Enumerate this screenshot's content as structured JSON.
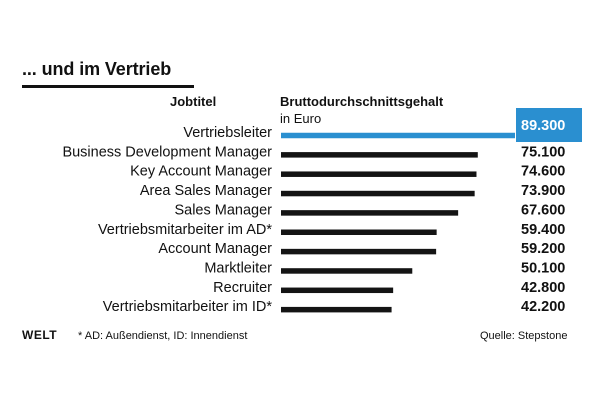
{
  "header": {
    "title": "... und im Vertrieb"
  },
  "columns": {
    "job_label": "Jobtitel",
    "salary_label": "Bruttodurchschnittsgehalt",
    "salary_unit": "in Euro"
  },
  "chart_data": {
    "type": "bar",
    "orientation": "horizontal",
    "categories": [
      "Vertriebsleiter",
      "Business Development Manager",
      "Key Account Manager",
      "Area Sales Manager",
      "Sales Manager",
      "Vertriebsmitarbeiter im AD*",
      "Account Manager",
      "Marktleiter",
      "Recruiter",
      "Vertriebsmitarbeiter im ID*"
    ],
    "values": [
      89300,
      75100,
      74600,
      73900,
      67600,
      59400,
      59200,
      50100,
      42800,
      42200
    ],
    "value_labels": [
      "89.300",
      "75.100",
      "74.600",
      "73.900",
      "67.600",
      "59.400",
      "59.200",
      "50.100",
      "42.800",
      "42.200"
    ],
    "xlim": [
      0,
      89300
    ],
    "highlight_index": 0,
    "colors": {
      "highlight": "#2a8fd0",
      "bar": "#141414",
      "highlight_label_bg": "#2a8fd0",
      "highlight_label_text": "#ffffff"
    },
    "grid": false
  },
  "footer": {
    "logo": "WELT",
    "footnote": "* AD: Außendienst, ID: Innendienst",
    "source": "Quelle: Stepstone"
  }
}
